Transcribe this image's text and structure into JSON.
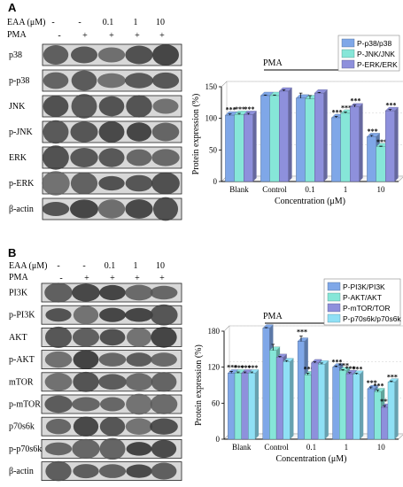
{
  "panels": [
    {
      "letter": "A",
      "treatment_row": {
        "eaa_label": "EAA (μM)",
        "pma_label": "PMA",
        "eaa_values": [
          "-",
          "-",
          "0.1",
          "1",
          "10"
        ],
        "pma_values": [
          "-",
          "+",
          "+",
          "+",
          "+"
        ]
      },
      "blots": [
        "p38",
        "p-p38",
        "JNK",
        "p-JNK",
        "ERK",
        "p-ERK",
        "β-actin"
      ]
    },
    {
      "letter": "B",
      "treatment_row": {
        "eaa_label": "EAA (μM)",
        "pma_label": "PMA",
        "eaa_values": [
          "-",
          "-",
          "0.1",
          "1",
          "10"
        ],
        "pma_values": [
          "-",
          "+",
          "+",
          "+",
          "+"
        ]
      },
      "blots": [
        "PI3K",
        "p-PI3K",
        "AKT",
        "p-AKT",
        "mTOR",
        "p-mTOR",
        "p70s6k",
        "p-p70s6k",
        "β-actin"
      ]
    }
  ],
  "chart_data": [
    {
      "type": "bar",
      "pma_label": "PMA",
      "categories": [
        "Blank",
        "Control",
        "0.1",
        "1",
        "10"
      ],
      "xlabel": "Concentration (μM)",
      "ylabel": "Protein expression (%)",
      "ylim": [
        0,
        150
      ],
      "yticks": [
        0,
        50,
        100,
        150
      ],
      "legend_position": "top-right",
      "series": [
        {
          "name": "P-p38/p38",
          "color": "#7fa7e8",
          "values": [
            105,
            136,
            132,
            101,
            71
          ],
          "errors": [
            2,
            1,
            8,
            2,
            2
          ],
          "sig": [
            "***",
            "",
            "",
            "***",
            "***"
          ]
        },
        {
          "name": "P-JNK/JNK",
          "color": "#86e6d8",
          "values": [
            106,
            136,
            131,
            108,
            55
          ],
          "errors": [
            2,
            1,
            5,
            2,
            1
          ],
          "sig": [
            "***",
            "",
            "",
            "***",
            "***"
          ]
        },
        {
          "name": "P-ERK/ERK",
          "color": "#8e90dc",
          "values": [
            106,
            143,
            140,
            118,
            112
          ],
          "errors": [
            2,
            2,
            1,
            3,
            2
          ],
          "sig": [
            "***",
            "",
            "",
            "***",
            "***"
          ]
        }
      ]
    },
    {
      "type": "bar",
      "pma_label": "PMA",
      "categories": [
        "Blank",
        "Control",
        "0.1",
        "1",
        "10"
      ],
      "xlabel": "Concentration (μM)",
      "ylabel": "Protein expression (%)",
      "ylim": [
        0,
        180
      ],
      "yticks": [
        0,
        60,
        120,
        180
      ],
      "legend_position": "top-right",
      "series": [
        {
          "name": "P-PI3K/PI3K",
          "color": "#7fa7e8",
          "values": [
            110,
            185,
            163,
            120,
            84
          ],
          "errors": [
            3,
            1,
            9,
            2,
            3
          ],
          "sig": [
            "***",
            "",
            "***",
            "***",
            "***"
          ]
        },
        {
          "name": "P-AKT/AKT",
          "color": "#86e6d8",
          "values": [
            110,
            148,
            107,
            114,
            79
          ],
          "errors": [
            2,
            10,
            3,
            2,
            3
          ],
          "sig": [
            "***",
            "",
            "***",
            "***",
            "***"
          ]
        },
        {
          "name": "P-mTOR/TOR",
          "color": "#8e90dc",
          "values": [
            110,
            136,
            127,
            109,
            53
          ],
          "errors": [
            2,
            2,
            2,
            2,
            3
          ],
          "sig": [
            "***",
            "",
            "",
            "***",
            "***"
          ]
        },
        {
          "name": "P-p70s6k/p70s6k",
          "color": "#8fe0f5",
          "values": [
            110,
            129,
            125,
            108,
            95
          ],
          "errors": [
            2,
            2,
            2,
            2,
            2
          ],
          "sig": [
            "***",
            "",
            "",
            "***",
            "***"
          ]
        }
      ]
    }
  ]
}
